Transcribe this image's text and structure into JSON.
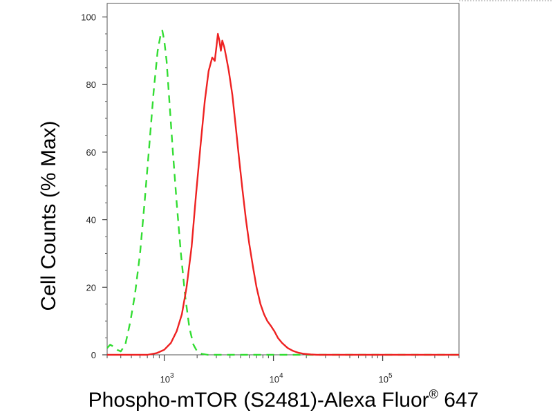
{
  "chart_data": {
    "type": "line",
    "title": "",
    "xlabel": "Phospho-mTOR (S2481)-Alexa Fluor",
    "xlabel_superscript": "®",
    "xlabel_suffix": " 647",
    "ylabel": "Cell Counts (% Max)",
    "x_scale": "log",
    "xlim": [
      300,
      500000
    ],
    "ylim": [
      0,
      104
    ],
    "y_ticks": [
      "0",
      "20",
      "40",
      "60",
      "80",
      "100"
    ],
    "y_tick_values": [
      0,
      20,
      40,
      60,
      80,
      100
    ],
    "x_ticks": [
      {
        "base": "10",
        "exp": "3",
        "value": 1000
      },
      {
        "base": "10",
        "exp": "4",
        "value": 10000
      },
      {
        "base": "10",
        "exp": "5",
        "value": 100000
      }
    ],
    "grid": false,
    "legend": "none",
    "series": [
      {
        "color": "#33dd33",
        "style": "dashed",
        "points": [
          [
            300,
            2
          ],
          [
            320,
            3
          ],
          [
            340,
            2.5
          ],
          [
            370,
            1.5
          ],
          [
            400,
            1
          ],
          [
            440,
            3
          ],
          [
            490,
            10
          ],
          [
            540,
            18
          ],
          [
            600,
            30
          ],
          [
            660,
            45
          ],
          [
            730,
            62
          ],
          [
            800,
            78
          ],
          [
            870,
            90
          ],
          [
            930,
            95
          ],
          [
            960,
            96
          ],
          [
            1000,
            93
          ],
          [
            1050,
            87
          ],
          [
            1120,
            74
          ],
          [
            1200,
            60
          ],
          [
            1300,
            45
          ],
          [
            1420,
            30
          ],
          [
            1560,
            17
          ],
          [
            1700,
            8
          ],
          [
            1850,
            3
          ],
          [
            2000,
            1
          ],
          [
            2200,
            0.3
          ],
          [
            2500,
            0
          ],
          [
            4000,
            0
          ],
          [
            8000,
            0
          ],
          [
            20000,
            0
          ],
          [
            100000,
            0
          ],
          [
            500000,
            0
          ]
        ]
      },
      {
        "color": "#ee2222",
        "style": "solid",
        "points": [
          [
            300,
            0
          ],
          [
            700,
            0
          ],
          [
            850,
            0.5
          ],
          [
            1000,
            1.5
          ],
          [
            1150,
            3.5
          ],
          [
            1300,
            7
          ],
          [
            1450,
            12
          ],
          [
            1600,
            20
          ],
          [
            1780,
            32
          ],
          [
            1950,
            47
          ],
          [
            2150,
            62
          ],
          [
            2350,
            75
          ],
          [
            2550,
            84
          ],
          [
            2750,
            88
          ],
          [
            2900,
            87
          ],
          [
            3000,
            91
          ],
          [
            3100,
            95
          ],
          [
            3200,
            93
          ],
          [
            3300,
            90
          ],
          [
            3400,
            93
          ],
          [
            3550,
            91
          ],
          [
            3700,
            88
          ],
          [
            3900,
            84
          ],
          [
            4200,
            77
          ],
          [
            4500,
            68
          ],
          [
            4850,
            58
          ],
          [
            5200,
            49
          ],
          [
            5600,
            40
          ],
          [
            6000,
            33
          ],
          [
            6500,
            26
          ],
          [
            7000,
            20
          ],
          [
            7600,
            15
          ],
          [
            8200,
            12
          ],
          [
            8800,
            10
          ],
          [
            9500,
            8.5
          ],
          [
            10200,
            7
          ],
          [
            11000,
            5
          ],
          [
            12000,
            3.5
          ],
          [
            13500,
            2
          ],
          [
            15000,
            1.2
          ],
          [
            17000,
            0.6
          ],
          [
            19000,
            0.3
          ],
          [
            22000,
            0.1
          ],
          [
            25000,
            0
          ],
          [
            100000,
            0
          ],
          [
            500000,
            0
          ]
        ]
      }
    ]
  }
}
